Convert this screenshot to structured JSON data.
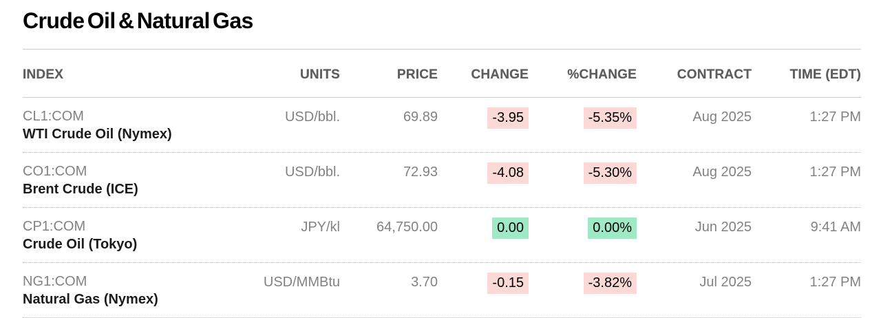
{
  "page": {
    "title": "Crude Oil & Natural Gas"
  },
  "table": {
    "columns": [
      "INDEX",
      "UNITS",
      "PRICE",
      "CHANGE",
      "%CHANGE",
      "CONTRACT",
      "TIME (EDT)"
    ],
    "rows": [
      {
        "ticker": "CL1:COM",
        "name": "WTI Crude Oil (Nymex)",
        "units": "USD/bbl.",
        "price": "69.89",
        "change": "-3.95",
        "pct_change": "-5.35%",
        "direction": "down",
        "contract": "Aug 2025",
        "time": "1:27 PM"
      },
      {
        "ticker": "CO1:COM",
        "name": "Brent Crude (ICE)",
        "units": "USD/bbl.",
        "price": "72.93",
        "change": "-4.08",
        "pct_change": "-5.30%",
        "direction": "down",
        "contract": "Aug 2025",
        "time": "1:27 PM"
      },
      {
        "ticker": "CP1:COM",
        "name": "Crude Oil (Tokyo)",
        "units": "JPY/kl",
        "price": "64,750.00",
        "change": "0.00",
        "pct_change": "0.00%",
        "direction": "flat",
        "contract": "Jun 2025",
        "time": "9:41 AM"
      },
      {
        "ticker": "NG1:COM",
        "name": "Natural Gas (Nymex)",
        "units": "USD/MMBtu",
        "price": "3.70",
        "change": "-0.15",
        "pct_change": "-3.82%",
        "direction": "down",
        "contract": "Jul 2025",
        "time": "1:27 PM"
      }
    ]
  },
  "colors": {
    "down_bg": "#fad9d6",
    "flat_bg": "#9fe9c5",
    "text_gray": "#828282",
    "divider_solid": "#cccccc",
    "divider_dotted": "#bdbdbd"
  }
}
